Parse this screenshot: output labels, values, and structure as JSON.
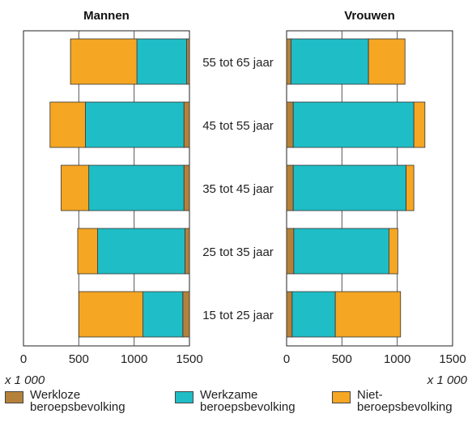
{
  "chart_data": {
    "type": "bar",
    "orientation": "horizontal",
    "stacked": true,
    "unit_label": "x 1 000",
    "categories": [
      "55 tot 65 jaar",
      "45 tot 55 jaar",
      "35 tot 45 jaar",
      "25 tot 35 jaar",
      "15 tot 25 jaar"
    ],
    "panels": [
      {
        "title": "Mannen",
        "direction": "right-to-left",
        "xlim": [
          0,
          1500
        ],
        "ticks": [
          0,
          500,
          1000,
          1500
        ],
        "tick_labels": [
          "0",
          "500",
          "1000",
          "1500"
        ],
        "series": [
          {
            "name": "Werkloze beroepsbevolking",
            "values": [
              25,
              50,
              50,
              40,
              60
            ]
          },
          {
            "name": "Werkzame beroepsbevolking",
            "values": [
              450,
              890,
              860,
              790,
              360
            ]
          },
          {
            "name": "Niet-beroepsbevolking",
            "values": [
              600,
              320,
              250,
              180,
              580
            ]
          }
        ]
      },
      {
        "title": "Vrouwen",
        "direction": "left-to-right",
        "xlim": [
          0,
          1500
        ],
        "ticks": [
          0,
          500,
          1000,
          1500
        ],
        "tick_labels": [
          "0",
          "500",
          "1000",
          "1500"
        ],
        "series": [
          {
            "name": "Werkloze beroepsbevolking",
            "values": [
              40,
              60,
              60,
              65,
              50
            ]
          },
          {
            "name": "Werkzame beroepsbevolking",
            "values": [
              700,
              1090,
              1020,
              860,
              390
            ]
          },
          {
            "name": "Niet-beroepsbevolking",
            "values": [
              330,
              100,
              70,
              80,
              590
            ]
          }
        ]
      }
    ],
    "legend": [
      {
        "name": "Werkloze\nberoepsbevolking",
        "color": "#b5813a"
      },
      {
        "name": "Werkzame\nberoepsbevolking",
        "color": "#1fbdc6"
      },
      {
        "name": "Niet-\nberoepsbevolking",
        "color": "#f5a623"
      }
    ],
    "grid": true,
    "legend_position": "bottom"
  }
}
